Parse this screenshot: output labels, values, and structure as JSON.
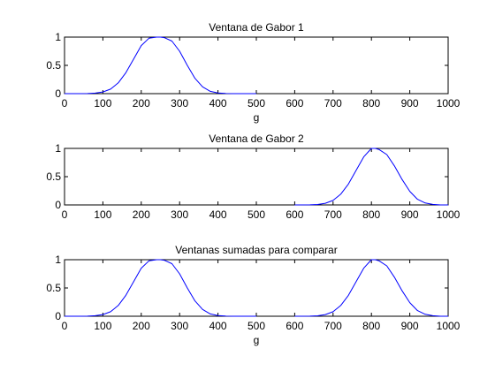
{
  "chart_data": [
    {
      "type": "line",
      "title": "Ventana de Gabor 1",
      "xlabel": "g",
      "ylabel": "",
      "xlim": [
        0,
        1000
      ],
      "ylim": [
        0,
        1
      ],
      "xticks": [
        "0",
        "100",
        "200",
        "300",
        "400",
        "500",
        "600",
        "700",
        "800",
        "900",
        "1000"
      ],
      "yticks": [
        "0",
        "0.5",
        "1"
      ],
      "grid": false,
      "line_color": "#0000ff",
      "series": [
        {
          "x": [
            0,
            40,
            60,
            80,
            100,
            120,
            140,
            160,
            180,
            200,
            220,
            240,
            250,
            260,
            280,
            300,
            320,
            340,
            360,
            380,
            400,
            420,
            440,
            460,
            500
          ],
          "y": [
            0.0,
            0.0,
            0.002,
            0.009,
            0.03,
            0.08,
            0.19,
            0.37,
            0.61,
            0.85,
            0.98,
            1.0,
            1.0,
            0.99,
            0.93,
            0.75,
            0.5,
            0.27,
            0.12,
            0.04,
            0.011,
            0.003,
            0.0,
            0.0,
            0.0
          ]
        }
      ]
    },
    {
      "type": "line",
      "title": "Ventana de Gabor 2",
      "xlabel": "",
      "ylabel": "",
      "xlim": [
        0,
        1000
      ],
      "ylim": [
        0,
        1
      ],
      "xticks": [
        "0",
        "100",
        "200",
        "300",
        "400",
        "500",
        "600",
        "700",
        "800",
        "900",
        "1000"
      ],
      "yticks": [
        "0",
        "0.5",
        "1"
      ],
      "grid": false,
      "line_color": "#0000ff",
      "series": [
        {
          "x": [
            600,
            640,
            660,
            680,
            700,
            720,
            740,
            760,
            780,
            800,
            810,
            820,
            840,
            860,
            880,
            900,
            920,
            940,
            960,
            980,
            1000
          ],
          "y": [
            0.0,
            0.002,
            0.008,
            0.03,
            0.08,
            0.19,
            0.37,
            0.61,
            0.85,
            1.0,
            1.0,
            0.98,
            0.89,
            0.69,
            0.45,
            0.24,
            0.1,
            0.035,
            0.01,
            0.0,
            0.0
          ]
        }
      ]
    },
    {
      "type": "line",
      "title": "Ventanas sumadas para comparar",
      "xlabel": "g",
      "ylabel": "",
      "xlim": [
        0,
        1000
      ],
      "ylim": [
        0,
        1
      ],
      "xticks": [
        "0",
        "100",
        "200",
        "300",
        "400",
        "500",
        "600",
        "700",
        "800",
        "900",
        "1000"
      ],
      "yticks": [
        "0",
        "0.5",
        "1"
      ],
      "grid": false,
      "line_color": "#0000ff",
      "series": [
        {
          "x": [
            0,
            40,
            60,
            80,
            100,
            120,
            140,
            160,
            180,
            200,
            220,
            240,
            250,
            260,
            280,
            300,
            320,
            340,
            360,
            380,
            400,
            420,
            440,
            460,
            500
          ],
          "y": [
            0.0,
            0.0,
            0.002,
            0.009,
            0.03,
            0.08,
            0.19,
            0.37,
            0.61,
            0.85,
            0.98,
            1.0,
            1.0,
            0.99,
            0.93,
            0.75,
            0.5,
            0.27,
            0.12,
            0.04,
            0.011,
            0.003,
            0.0,
            0.0,
            0.0
          ]
        },
        {
          "x": [
            600,
            640,
            660,
            680,
            700,
            720,
            740,
            760,
            780,
            800,
            810,
            820,
            840,
            860,
            880,
            900,
            920,
            940,
            960,
            980,
            1000
          ],
          "y": [
            0.0,
            0.002,
            0.008,
            0.03,
            0.08,
            0.19,
            0.37,
            0.61,
            0.85,
            1.0,
            1.0,
            0.98,
            0.89,
            0.69,
            0.45,
            0.24,
            0.1,
            0.035,
            0.01,
            0.0,
            0.0
          ]
        }
      ]
    }
  ]
}
